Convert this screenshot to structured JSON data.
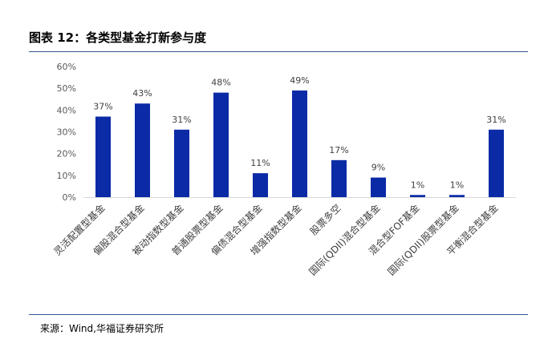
{
  "header": {
    "title": "图表 12：各类型基金打新参与度"
  },
  "footer": {
    "source": "来源：Wind,华福证券研究所"
  },
  "chart_data": {
    "type": "bar",
    "categories": [
      "灵活配置型基金",
      "偏股混合型基金",
      "被动指数型基金",
      "普通股票型基金",
      "偏债混合型基金",
      "增强指数型基金",
      "股票多空",
      "国际(QDII)混合型基金",
      "混合型FOF基金",
      "国际(QDII)股票型基金",
      "平衡混合型基金"
    ],
    "values": [
      37,
      43,
      31,
      48,
      11,
      49,
      17,
      9,
      1,
      1,
      31
    ],
    "data_labels": [
      "37%",
      "43%",
      "31%",
      "48%",
      "11%",
      "49%",
      "17%",
      "9%",
      "1%",
      "1%",
      "31%"
    ],
    "value_unit": "%",
    "ylim": [
      0,
      60
    ],
    "y_ticks": [
      0,
      10,
      20,
      30,
      40,
      50,
      60
    ],
    "y_tick_labels": [
      "0%",
      "10%",
      "20%",
      "30%",
      "40%",
      "50%",
      "60%"
    ],
    "grid": false,
    "bar_color": "#0a2aa6",
    "title": "",
    "xlabel": "",
    "ylabel": ""
  }
}
